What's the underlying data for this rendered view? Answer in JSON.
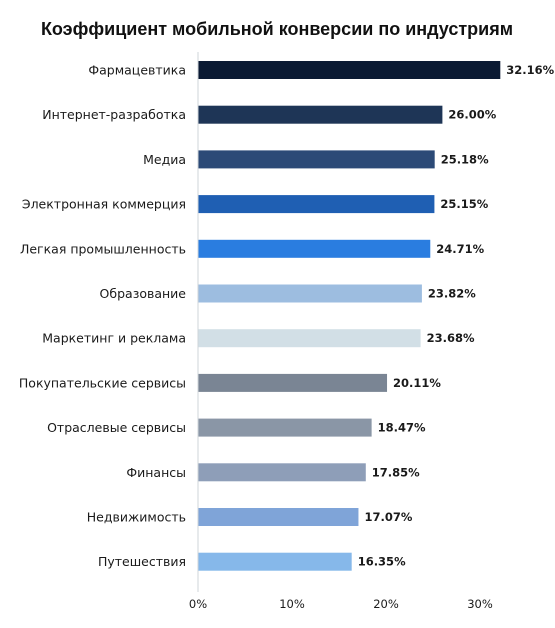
{
  "chart_data": {
    "type": "bar",
    "orientation": "horizontal",
    "title": "Коэффициент мобильной конверсии по индустриям",
    "categories": [
      "Фармацевтика",
      "Интернет-разработка",
      "Медиа",
      "Электронная коммерция",
      "Легкая промышленность",
      "Образование",
      "Маркетинг и реклама",
      "Покупательские сервисы",
      "Отраслевые сервисы",
      "Финансы",
      "Недвижимость",
      "Путешествия"
    ],
    "values": [
      32.16,
      26.0,
      25.18,
      25.15,
      24.71,
      23.82,
      23.68,
      20.11,
      18.47,
      17.85,
      17.07,
      16.35
    ],
    "value_labels": [
      "32.16%",
      "26.00%",
      "25.18%",
      "25.15%",
      "24.71%",
      "23.82%",
      "23.68%",
      "20.11%",
      "18.47%",
      "17.85%",
      "17.07%",
      "16.35%"
    ],
    "colors": [
      "#0b1a33",
      "#1e3556",
      "#2c4a77",
      "#1f5fb3",
      "#2a7de0",
      "#9dbde0",
      "#d2dfe6",
      "#7a8594",
      "#8a96a6",
      "#8e9eb8",
      "#7fa4d8",
      "#86b8ea"
    ],
    "xticks": [
      0,
      10,
      20,
      30
    ],
    "xtick_labels": [
      "0%",
      "10%",
      "20%",
      "30%"
    ],
    "xlim": [
      0,
      34
    ],
    "xlabel": "",
    "ylabel": "",
    "grid": false,
    "legend": "none"
  }
}
